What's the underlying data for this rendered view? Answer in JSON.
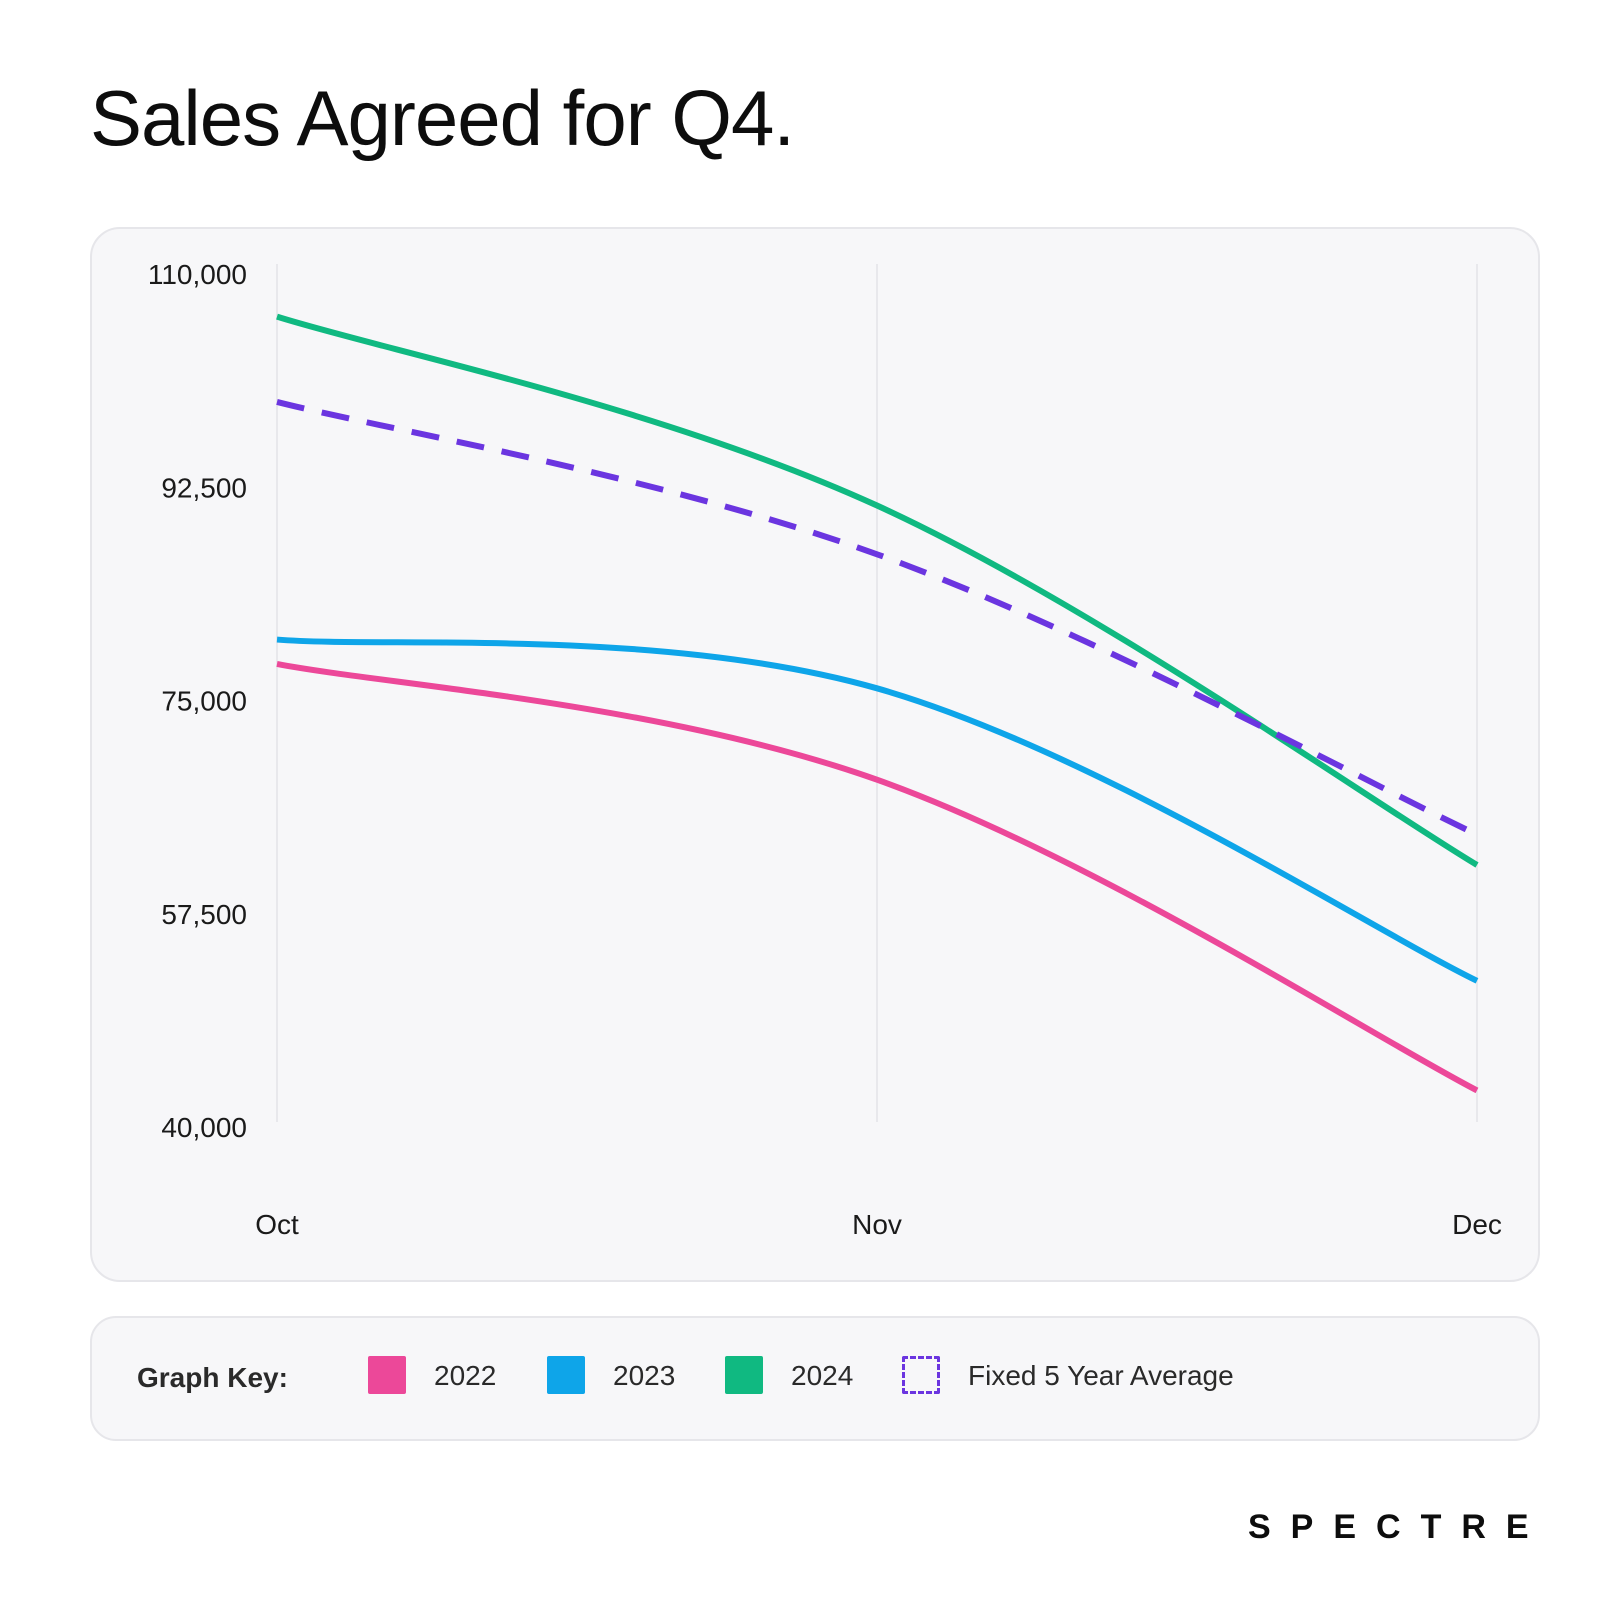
{
  "title": "Sales Agreed for Q4.",
  "brand": "SPECTRE",
  "legend": {
    "title": "Graph Key:",
    "items": [
      {
        "label": "2022",
        "color": "#ec4899",
        "style": "solid"
      },
      {
        "label": "2023",
        "color": "#0ea5e9",
        "style": "solid"
      },
      {
        "label": "2024",
        "color": "#10b981",
        "style": "solid"
      },
      {
        "label": "Fixed 5 Year Average",
        "color": "#6b35e0",
        "style": "dashed"
      }
    ]
  },
  "chart_data": {
    "type": "line",
    "title": "Sales Agreed for Q4.",
    "xlabel": "",
    "ylabel": "",
    "categories": [
      "Oct",
      "Nov",
      "Dec"
    ],
    "ylim": [
      40000,
      110000
    ],
    "yticks": [
      40000,
      57500,
      75000,
      92500,
      110000
    ],
    "ytick_labels": [
      "40,000",
      "57,500",
      "75,000",
      "92,500",
      "110,000"
    ],
    "grid": "vertical",
    "legend_position": "bottom",
    "series": [
      {
        "name": "2022",
        "color": "#ec4899",
        "dashed": false,
        "values": [
          78000,
          68500,
          43000
        ]
      },
      {
        "name": "2023",
        "color": "#0ea5e9",
        "dashed": false,
        "values": [
          80000,
          76000,
          52000
        ]
      },
      {
        "name": "2024",
        "color": "#10b981",
        "dashed": false,
        "values": [
          106500,
          91000,
          61500
        ]
      },
      {
        "name": "Fixed 5 Year Average",
        "color": "#6b35e0",
        "dashed": true,
        "values": [
          99500,
          87000,
          64000
        ]
      }
    ]
  }
}
